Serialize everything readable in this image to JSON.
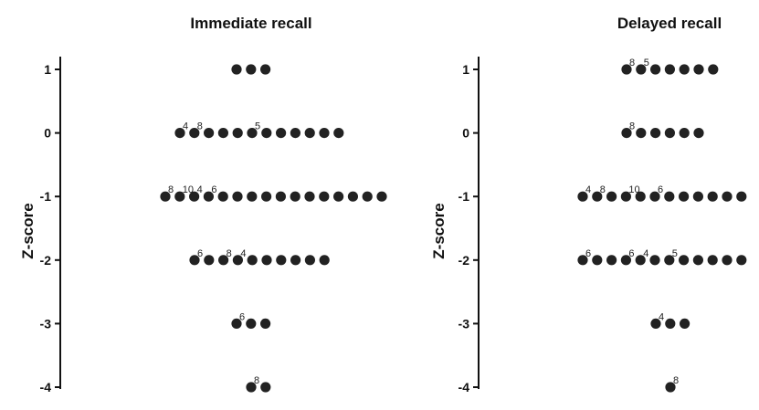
{
  "chart_data": [
    {
      "type": "scatter",
      "subtype": "dot-plot",
      "title": "Immediate recall",
      "ylabel": "Z-score",
      "xlabel": "",
      "ylim": [
        -4,
        1
      ],
      "yticks": [
        "1",
        "0",
        "-1",
        "-2",
        "-3",
        "-4"
      ],
      "grid": false,
      "legend": "none",
      "marker_color": "#222222",
      "rows": [
        {
          "y": 1,
          "count": 3,
          "labels": []
        },
        {
          "y": 0,
          "count": 12,
          "labels": [
            {
              "index": 0,
              "text": "4"
            },
            {
              "index": 1,
              "text": "8"
            },
            {
              "index": 5,
              "text": "5"
            }
          ]
        },
        {
          "y": -1,
          "count": 16,
          "labels": [
            {
              "index": 0,
              "text": "8"
            },
            {
              "index": 1,
              "text": "10"
            },
            {
              "index": 2,
              "text": "4"
            },
            {
              "index": 3,
              "text": "6"
            }
          ]
        },
        {
          "y": -2,
          "count": 10,
          "labels": [
            {
              "index": 0,
              "text": "6"
            },
            {
              "index": 2,
              "text": "8"
            },
            {
              "index": 3,
              "text": "4"
            }
          ]
        },
        {
          "y": -3,
          "count": 3,
          "labels": [
            {
              "index": 0,
              "text": "6"
            }
          ]
        },
        {
          "y": -4,
          "count": 2,
          "labels": [
            {
              "index": 0,
              "text": "8"
            }
          ]
        }
      ]
    },
    {
      "type": "scatter",
      "subtype": "dot-plot",
      "title": "Delayed recall",
      "ylabel": "Z-score",
      "xlabel": "",
      "ylim": [
        -4,
        1
      ],
      "yticks": [
        "1",
        "0",
        "-1",
        "-2",
        "-3",
        "-4"
      ],
      "grid": false,
      "legend": "none",
      "marker_color": "#222222",
      "rows": [
        {
          "y": 1,
          "count": 7,
          "labels": [
            {
              "index": 0,
              "text": "8"
            },
            {
              "index": 1,
              "text": "5"
            }
          ]
        },
        {
          "y": 0,
          "count": 6,
          "labels": [
            {
              "index": 0,
              "text": "8"
            }
          ]
        },
        {
          "y": -1,
          "count": 13,
          "labels": [
            {
              "index": 0,
              "text": "4"
            },
            {
              "index": 1,
              "text": "8"
            },
            {
              "index": 3,
              "text": "10"
            },
            {
              "index": 5,
              "text": "6"
            }
          ]
        },
        {
          "y": -2,
          "count": 13,
          "labels": [
            {
              "index": 0,
              "text": "6"
            },
            {
              "index": 3,
              "text": "6"
            },
            {
              "index": 4,
              "text": "4"
            },
            {
              "index": 6,
              "text": "5"
            }
          ]
        },
        {
          "y": -3,
          "count": 3,
          "labels": [
            {
              "index": 0,
              "text": "4"
            }
          ]
        },
        {
          "y": -4,
          "count": 1,
          "labels": [
            {
              "index": 0,
              "text": "8"
            }
          ]
        }
      ]
    }
  ]
}
